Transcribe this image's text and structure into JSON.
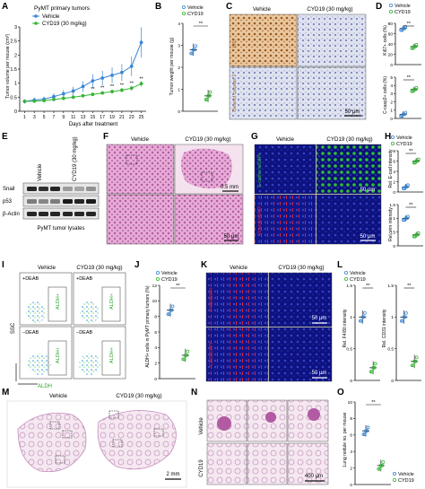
{
  "panels": {
    "A": {
      "letter": "A",
      "title": "PyMT primary tumors",
      "legend": [
        "Vehicle",
        "CYD19 (30 mg/kg)"
      ],
      "ylabel": "Tumor volume per mouse (cm³)",
      "xlabel": "Days after treatment",
      "sig": [
        "**",
        "**",
        "**",
        "**",
        "**",
        "**"
      ]
    },
    "B": {
      "letter": "B",
      "legend": [
        "Vehicle",
        "CYD19"
      ],
      "ylabel": "Tumor weight per mouse (g)",
      "sig": "**"
    },
    "C": {
      "letter": "C",
      "col1": "Vehicle",
      "col2": "CYD19 (30 mg/kg)",
      "row1": "Ki67",
      "row2": "Cleaved caspase 3",
      "scale": "50 μm"
    },
    "D": {
      "letter": "D",
      "legend": [
        "Vehicle",
        "CYD19"
      ],
      "ylabel1": "Ki67+ cells (%)",
      "ylabel2": "C-casp3+ cells (%)",
      "sig": "**"
    },
    "E": {
      "letter": "E",
      "lanes": [
        "Vehicle",
        "CYD19 (30 mg/kg)"
      ],
      "rows": [
        "Snail",
        "p53",
        "β-Actin"
      ],
      "caption": "PyMT tumor lysates"
    },
    "F": {
      "letter": "F",
      "col1": "Vehicle",
      "col2": "CYD19 (30 mg/kg)",
      "scale1": "0.5 mm",
      "scale2": "50 μm"
    },
    "G": {
      "letter": "G",
      "col1": "Vehicle",
      "col2": "CYD19 (30 mg/kg)",
      "row1": "E-cadherin/DAPI",
      "row2": "Vimentin/DAPI",
      "scale": "50 μm"
    },
    "H": {
      "letter": "H",
      "legend": [
        "Vehicle",
        "CYD19"
      ],
      "ylabel1": "Rel. E-cad intensity",
      "ylabel2": "Rel. vim intensity",
      "sig": "**"
    },
    "I": {
      "letter": "I",
      "col1": "Vehicle",
      "col2": "CYD19 (30 mg/kg)",
      "plus": "+DEAB",
      "minus": "−DEAB",
      "gate": "ALDH+",
      "xlabel": "ALDH",
      "ylabel": "SSC"
    },
    "J": {
      "letter": "J",
      "legend": [
        "Vehicle",
        "CYD19"
      ],
      "ylabel": "ALDH+ cells in PyMT primary tumors (%)",
      "sig": "**"
    },
    "K": {
      "letter": "K",
      "col1": "Vehicle",
      "col2": "CYD19 (30 mg/kg)",
      "row1": "F4/80/DAPI",
      "row2": "CD31/DAPI",
      "scale": "50 μm"
    },
    "L": {
      "letter": "L",
      "legend": [
        "Vehicle",
        "CYD19"
      ],
      "ylabel1": "Rel. F4/80 intensity",
      "ylabel2": "Rel. CD31 intensity",
      "sig": "**"
    },
    "M": {
      "letter": "M",
      "col1": "Vehicle",
      "col2": "CYD19 (30 mg/kg)",
      "scale": "2 mm"
    },
    "N": {
      "letter": "N",
      "row1": "Vehicle",
      "row2": "CYD19",
      "scale": "400 μm"
    },
    "O": {
      "letter": "O",
      "legend": [
        "Vehicle",
        "CYD19"
      ],
      "ylabel": "Lung nodule no. per mouse",
      "sig": "**"
    }
  },
  "colors": {
    "vehicle": "#3a86d4",
    "cyd19": "#34b534",
    "brown": "#a0622a",
    "pink": "#c978b6",
    "blue": "#1b1f9a",
    "green": "#38c23a",
    "red": "#e0283a"
  },
  "chart_data": [
    {
      "panel": "A",
      "type": "line",
      "x": [
        1,
        3,
        5,
        7,
        9,
        11,
        13,
        15,
        17,
        19,
        21,
        23,
        25
      ],
      "series": [
        {
          "name": "Vehicle",
          "values": [
            0.35,
            0.4,
            0.43,
            0.52,
            0.62,
            0.72,
            0.88,
            1.08,
            1.18,
            1.28,
            1.38,
            1.6,
            2.45
          ]
        },
        {
          "name": "CYD19 (30 mg/kg)",
          "values": [
            0.35,
            0.36,
            0.38,
            0.42,
            0.46,
            0.5,
            0.55,
            0.6,
            0.65,
            0.7,
            0.75,
            0.82,
            0.98
          ]
        }
      ],
      "xticks": [
        1,
        3,
        5,
        7,
        9,
        11,
        13,
        15,
        17,
        19,
        21,
        23,
        25
      ],
      "yticks": [
        0,
        0.5,
        1,
        1.5,
        2,
        2.5,
        3
      ],
      "ylim": [
        0,
        3
      ]
    },
    {
      "panel": "B",
      "type": "scatter",
      "categories": [
        "Vehicle",
        "CYD19"
      ],
      "values": [
        2.8,
        0.7
      ],
      "yticks": [
        0,
        1,
        2,
        3,
        4
      ],
      "ylim": [
        0,
        4
      ]
    },
    {
      "panel": "D-top",
      "type": "scatter",
      "categories": [
        "Vehicle",
        "CYD19"
      ],
      "values": [
        70,
        35
      ],
      "yticks": [
        0,
        20,
        40,
        60,
        80
      ],
      "ylim": [
        0,
        80
      ]
    },
    {
      "panel": "D-bottom",
      "type": "scatter",
      "categories": [
        "Vehicle",
        "CYD19"
      ],
      "values": [
        0.5,
        3.5
      ],
      "yticks": [
        0,
        1,
        2,
        3,
        4,
        5
      ],
      "ylim": [
        0,
        5
      ]
    },
    {
      "panel": "H-top",
      "type": "scatter",
      "categories": [
        "Vehicle",
        "CYD19"
      ],
      "values": [
        1,
        6
      ],
      "yticks": [
        0,
        2,
        4,
        6,
        8
      ],
      "ylim": [
        0,
        8
      ]
    },
    {
      "panel": "H-bottom",
      "type": "scatter",
      "categories": [
        "Vehicle",
        "CYD19"
      ],
      "values": [
        1,
        0.4
      ],
      "yticks": [
        0,
        0.5,
        1,
        1.5
      ],
      "ylim": [
        0,
        1.5
      ]
    },
    {
      "panel": "J",
      "type": "scatter",
      "categories": [
        "Vehicle",
        "CYD19"
      ],
      "values": [
        8.8,
        3
      ],
      "yticks": [
        0,
        2,
        4,
        6,
        8,
        10,
        12
      ],
      "ylim": [
        0,
        12
      ]
    },
    {
      "panel": "L-left",
      "type": "scatter",
      "categories": [
        "Vehicle",
        "CYD19"
      ],
      "values": [
        1,
        0.2
      ],
      "yticks": [
        0,
        0.5,
        1,
        1.5
      ],
      "ylim": [
        0,
        1.5
      ]
    },
    {
      "panel": "L-right",
      "type": "scatter",
      "categories": [
        "Vehicle",
        "CYD19"
      ],
      "values": [
        1,
        0.3
      ],
      "yticks": [
        0,
        0.5,
        1,
        1.5
      ],
      "ylim": [
        0,
        1.5
      ]
    },
    {
      "panel": "O",
      "type": "scatter",
      "categories": [
        "Vehicle",
        "CYD19"
      ],
      "values": [
        6.5,
        2.3
      ],
      "yticks": [
        0,
        2,
        4,
        6,
        8,
        10
      ],
      "ylim": [
        0,
        10
      ]
    }
  ]
}
